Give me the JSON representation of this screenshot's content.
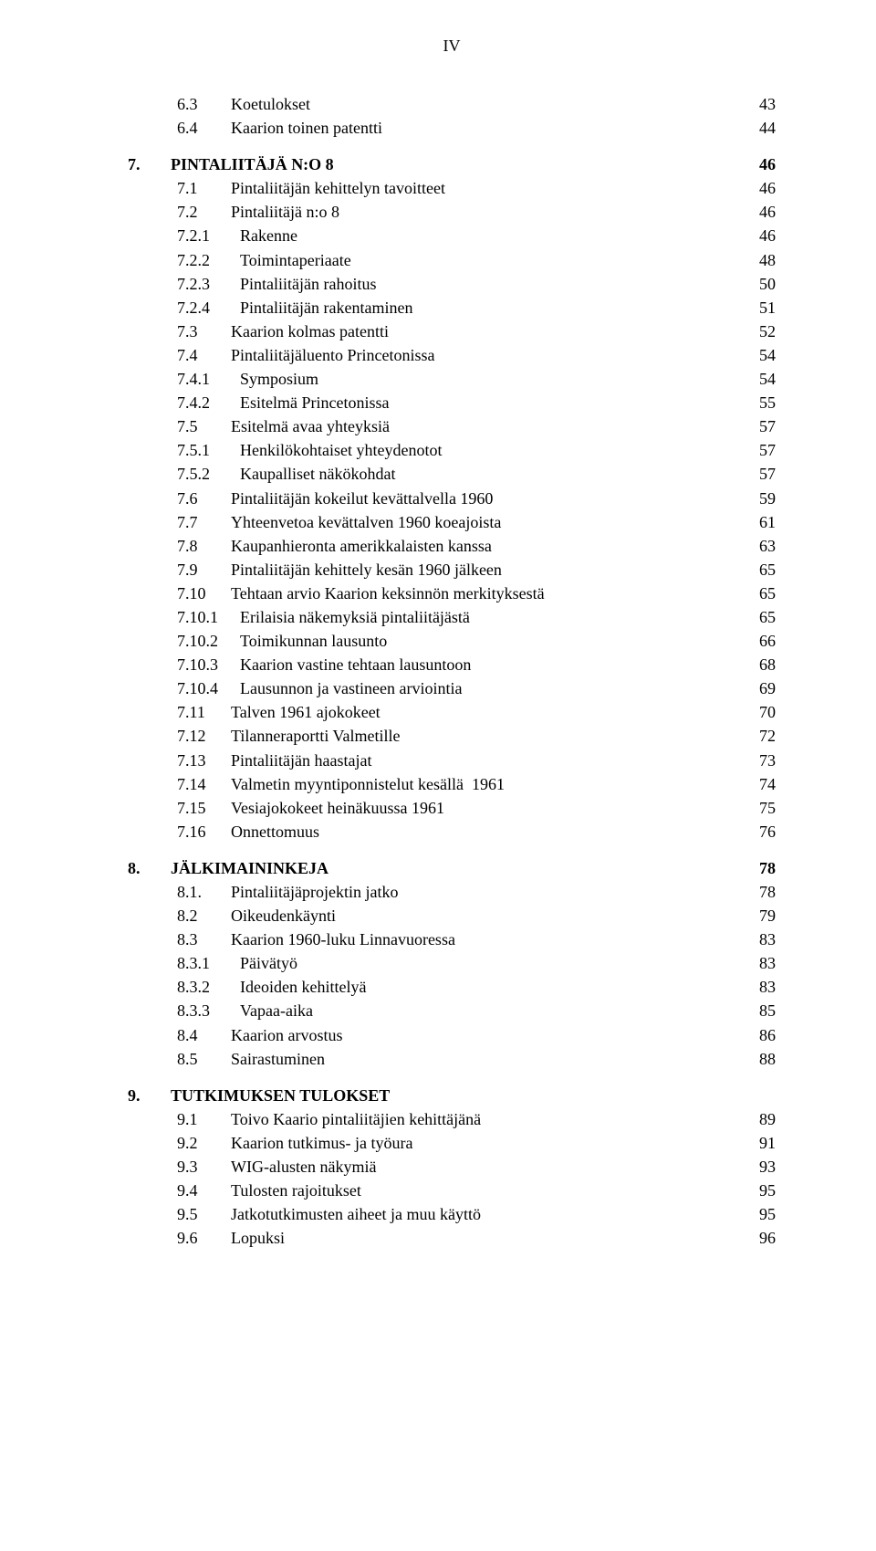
{
  "page_header": "IV",
  "lines": [
    {
      "indent": 1,
      "numw": 1,
      "num": "6.3",
      "text": "Koetulokset",
      "page": "43",
      "bold": false
    },
    {
      "indent": 1,
      "numw": 1,
      "num": "6.4",
      "text": "Kaarion toinen patentti",
      "page": "44",
      "bold": false
    },
    {
      "gap": true
    },
    {
      "indent": 0,
      "numw": 0,
      "num": "7.",
      "text": "PINTALIITÄJÄ N:O 8",
      "page": "46",
      "bold": true
    },
    {
      "indent": 1,
      "numw": 1,
      "num": "7.1",
      "text": "Pintaliitäjän kehittelyn tavoitteet",
      "page": "46",
      "bold": false
    },
    {
      "indent": 1,
      "numw": 1,
      "num": "7.2",
      "text": "Pintaliitäjä n:o 8",
      "page": "46",
      "bold": false
    },
    {
      "indent": 1,
      "numw": 2,
      "num": "7.2.1",
      "text": "Rakenne",
      "page": "46",
      "bold": false
    },
    {
      "indent": 1,
      "numw": 2,
      "num": "7.2.2",
      "text": "Toimintaperiaate",
      "page": "48",
      "bold": false
    },
    {
      "indent": 1,
      "numw": 2,
      "num": "7.2.3",
      "text": "Pintaliitäjän rahoitus",
      "page": "50",
      "bold": false
    },
    {
      "indent": 1,
      "numw": 2,
      "num": "7.2.4",
      "text": "Pintaliitäjän rakentaminen",
      "page": "51",
      "bold": false
    },
    {
      "indent": 1,
      "numw": 1,
      "num": "7.3",
      "text": "Kaarion kolmas patentti",
      "page": "52",
      "bold": false
    },
    {
      "indent": 1,
      "numw": 1,
      "num": "7.4",
      "text": "Pintaliitäjäluento Princetonissa",
      "page": "54",
      "bold": false
    },
    {
      "indent": 1,
      "numw": 2,
      "num": "7.4.1",
      "text": "Symposium",
      "page": "54",
      "bold": false
    },
    {
      "indent": 1,
      "numw": 2,
      "num": "7.4.2",
      "text": "Esitelmä Princetonissa",
      "page": "55",
      "bold": false
    },
    {
      "indent": 1,
      "numw": 1,
      "num": "7.5",
      "text": "Esitelmä avaa yhteyksiä",
      "page": "57",
      "bold": false
    },
    {
      "indent": 1,
      "numw": 2,
      "num": "7.5.1",
      "text": "Henkilökohtaiset yhteydenotot",
      "page": "57",
      "bold": false
    },
    {
      "indent": 1,
      "numw": 2,
      "num": "7.5.2",
      "text": "Kaupalliset näkökohdat",
      "page": "57",
      "bold": false
    },
    {
      "indent": 1,
      "numw": 1,
      "num": "7.6",
      "text": "Pintaliitäjän kokeilut kevättalvella 1960",
      "page": "59",
      "bold": false
    },
    {
      "indent": 1,
      "numw": 1,
      "num": "7.7",
      "text": "Yhteenvetoa kevättalven 1960 koeajoista",
      "page": "61",
      "bold": false
    },
    {
      "indent": 1,
      "numw": 1,
      "num": "7.8",
      "text": "Kaupanhieronta amerikkalaisten kanssa",
      "page": "63",
      "bold": false
    },
    {
      "indent": 1,
      "numw": 1,
      "num": "7.9",
      "text": "Pintaliitäjän kehittely kesän 1960 jälkeen",
      "page": "65",
      "bold": false
    },
    {
      "indent": 1,
      "numw": 1,
      "num": "7.10",
      "text": "Tehtaan arvio Kaarion keksinnön merkityksestä",
      "page": "65",
      "bold": false
    },
    {
      "indent": 1,
      "numw": 2,
      "num": "7.10.1",
      "text": "Erilaisia näkemyksiä pintaliitäjästä",
      "page": "65",
      "bold": false
    },
    {
      "indent": 1,
      "numw": 2,
      "num": "7.10.2",
      "text": "Toimikunnan lausunto",
      "page": "66",
      "bold": false
    },
    {
      "indent": 1,
      "numw": 2,
      "num": "7.10.3",
      "text": "Kaarion vastine tehtaan lausuntoon",
      "page": "68",
      "bold": false
    },
    {
      "indent": 1,
      "numw": 2,
      "num": "7.10.4",
      "text": "Lausunnon ja vastineen arviointia",
      "page": "69",
      "bold": false
    },
    {
      "indent": 1,
      "numw": 1,
      "num": "7.11",
      "text": "Talven 1961 ajokokeet",
      "page": "70",
      "bold": false
    },
    {
      "indent": 1,
      "numw": 1,
      "num": "7.12",
      "text": "Tilanneraportti Valmetille",
      "page": "72",
      "bold": false
    },
    {
      "indent": 1,
      "numw": 1,
      "num": "7.13",
      "text": "Pintaliitäjän haastajat",
      "page": "73",
      "bold": false
    },
    {
      "indent": 1,
      "numw": 1,
      "num": "7.14",
      "text": "Valmetin myyntiponnistelut kesällä  1961",
      "page": "74",
      "bold": false
    },
    {
      "indent": 1,
      "numw": 1,
      "num": "7.15",
      "text": "Vesiajokokeet heinäkuussa 1961",
      "page": "75",
      "bold": false
    },
    {
      "indent": 1,
      "numw": 1,
      "num": "7.16",
      "text": "Onnettomuus",
      "page": "76",
      "bold": false
    },
    {
      "gap": true
    },
    {
      "indent": 0,
      "numw": 0,
      "num": "8.",
      "text": "JÄLKIMAININKEJA",
      "page": "78",
      "bold": true
    },
    {
      "indent": 1,
      "numw": 1,
      "num": "8.1.",
      "text": "Pintaliitäjäprojektin jatko",
      "page": "78",
      "bold": false
    },
    {
      "indent": 1,
      "numw": 1,
      "num": "8.2",
      "text": "Oikeudenkäynti",
      "page": "79",
      "bold": false
    },
    {
      "indent": 1,
      "numw": 1,
      "num": "8.3",
      "text": "Kaarion 1960-luku Linnavuoressa",
      "page": "83",
      "bold": false
    },
    {
      "indent": 1,
      "numw": 2,
      "num": "8.3.1",
      "text": "Päivätyö",
      "page": "83",
      "bold": false
    },
    {
      "indent": 1,
      "numw": 2,
      "num": "8.3.2",
      "text": "Ideoiden kehittelyä",
      "page": "83",
      "bold": false
    },
    {
      "indent": 1,
      "numw": 2,
      "num": "8.3.3",
      "text": "Vapaa-aika",
      "page": "85",
      "bold": false
    },
    {
      "indent": 1,
      "numw": 1,
      "num": "8.4",
      "text": "Kaarion arvostus",
      "page": "86",
      "bold": false
    },
    {
      "indent": 1,
      "numw": 1,
      "num": "8.5",
      "text": "Sairastuminen",
      "page": "88",
      "bold": false
    },
    {
      "gap": true
    },
    {
      "indent": 0,
      "numw": 0,
      "num": "9.",
      "text": "TUTKIMUKSEN TULOKSET",
      "page": "",
      "bold": true
    },
    {
      "indent": 1,
      "numw": 1,
      "num": "9.1",
      "text": "Toivo Kaario pintaliitäjien kehittäjänä",
      "page": "89",
      "bold": false
    },
    {
      "indent": 1,
      "numw": 1,
      "num": "9.2",
      "text": "Kaarion tutkimus- ja työura",
      "page": "91",
      "bold": false
    },
    {
      "indent": 1,
      "numw": 1,
      "num": "9.3",
      "text": "WIG-alusten näkymiä",
      "page": "93",
      "bold": false
    },
    {
      "indent": 1,
      "numw": 1,
      "num": "9.4",
      "text": "Tulosten rajoitukset",
      "page": "95",
      "bold": false
    },
    {
      "indent": 1,
      "numw": 1,
      "num": "9.5",
      "text": "Jatkotutkimusten aiheet ja muu käyttö",
      "page": "95",
      "bold": false
    },
    {
      "indent": 1,
      "numw": 1,
      "num": "9.6",
      "text": "Lopuksi",
      "page": "96",
      "bold": false
    }
  ]
}
